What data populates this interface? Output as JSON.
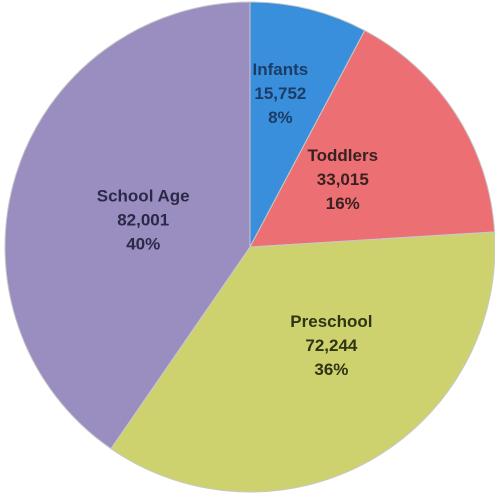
{
  "chart_data": {
    "type": "pie",
    "title": "",
    "slices": [
      {
        "label": "Infants",
        "value": 15752,
        "value_label": "15,752",
        "percent_label": "8%",
        "color": "#3a8fdc",
        "text_color": "#1c3c66"
      },
      {
        "label": "Toddlers",
        "value": 33015,
        "value_label": "33,015",
        "percent_label": "16%",
        "color": "#ec6f73",
        "text_color": "#3a2121"
      },
      {
        "label": "Preschool",
        "value": 72244,
        "value_label": "72,244",
        "percent_label": "36%",
        "color": "#cdd26e",
        "text_color": "#2e3414"
      },
      {
        "label": "School Age",
        "value": 82001,
        "value_label": "82,001",
        "percent_label": "40%",
        "color": "#9a8dc0",
        "text_color": "#2a2a48"
      }
    ],
    "start_angle_deg": 0,
    "direction": "clockwise",
    "legend": "none"
  }
}
